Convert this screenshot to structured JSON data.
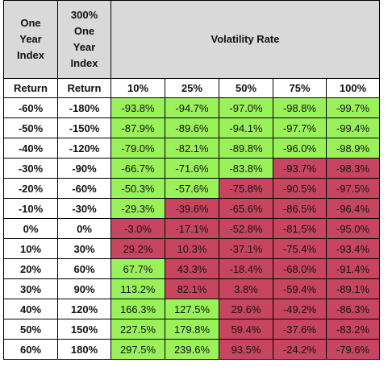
{
  "header": {
    "col1_lines": [
      "One",
      "Year",
      "Index"
    ],
    "col2_lines": [
      "300%",
      "One",
      "Year",
      "Index"
    ],
    "volatility_title": "Volatility Rate",
    "col1_sub": "Return",
    "col2_sub": "Return",
    "vol_levels": [
      "10%",
      "25%",
      "50%",
      "75%",
      "100%"
    ]
  },
  "colors": {
    "positive": "#9af25a",
    "negative": "#c8455f",
    "header_bg": "#d9d9d9"
  },
  "rows": [
    {
      "index_return": "-60%",
      "levered_return": "-180%",
      "cells": [
        {
          "v": "-93.8%",
          "s": "pos"
        },
        {
          "v": "-94.7%",
          "s": "pos"
        },
        {
          "v": "-97.0%",
          "s": "pos"
        },
        {
          "v": "-98.8%",
          "s": "pos"
        },
        {
          "v": "-99.7%",
          "s": "pos"
        }
      ]
    },
    {
      "index_return": "-50%",
      "levered_return": "-150%",
      "cells": [
        {
          "v": "-87.9%",
          "s": "pos"
        },
        {
          "v": "-89.6%",
          "s": "pos"
        },
        {
          "v": "-94.1%",
          "s": "pos"
        },
        {
          "v": "-97.7%",
          "s": "pos"
        },
        {
          "v": "-99.4%",
          "s": "pos"
        }
      ]
    },
    {
      "index_return": "-40%",
      "levered_return": "-120%",
      "cells": [
        {
          "v": "-79.0%",
          "s": "pos"
        },
        {
          "v": "-82.1%",
          "s": "pos"
        },
        {
          "v": "-89.8%",
          "s": "pos"
        },
        {
          "v": "-96.0%",
          "s": "pos"
        },
        {
          "v": "-98.9%",
          "s": "pos"
        }
      ]
    },
    {
      "index_return": "-30%",
      "levered_return": "-90%",
      "cells": [
        {
          "v": "-66.7%",
          "s": "pos"
        },
        {
          "v": "-71.6%",
          "s": "pos"
        },
        {
          "v": "-83.8%",
          "s": "pos"
        },
        {
          "v": "-93.7%",
          "s": "neg"
        },
        {
          "v": "-98.3%",
          "s": "neg"
        }
      ]
    },
    {
      "index_return": "-20%",
      "levered_return": "-60%",
      "cells": [
        {
          "v": "-50.3%",
          "s": "pos"
        },
        {
          "v": "-57.6%",
          "s": "pos"
        },
        {
          "v": "-75.8%",
          "s": "neg"
        },
        {
          "v": "-90.5%",
          "s": "neg"
        },
        {
          "v": "-97.5%",
          "s": "neg"
        }
      ]
    },
    {
      "index_return": "-10%",
      "levered_return": "-30%",
      "cells": [
        {
          "v": "-29.3%",
          "s": "pos"
        },
        {
          "v": "-39.6%",
          "s": "neg"
        },
        {
          "v": "-65.6%",
          "s": "neg"
        },
        {
          "v": "-86.5%",
          "s": "neg"
        },
        {
          "v": "-96.4%",
          "s": "neg"
        }
      ]
    },
    {
      "index_return": "0%",
      "levered_return": "0%",
      "cells": [
        {
          "v": "-3.0%",
          "s": "neg"
        },
        {
          "v": "-17.1%",
          "s": "neg"
        },
        {
          "v": "-52.8%",
          "s": "neg"
        },
        {
          "v": "-81.5%",
          "s": "neg"
        },
        {
          "v": "-95.0%",
          "s": "neg"
        }
      ]
    },
    {
      "index_return": "10%",
      "levered_return": "30%",
      "cells": [
        {
          "v": "29.2%",
          "s": "neg"
        },
        {
          "v": "10.3%",
          "s": "neg"
        },
        {
          "v": "-37.1%",
          "s": "neg"
        },
        {
          "v": "-75.4%",
          "s": "neg"
        },
        {
          "v": "-93.4%",
          "s": "neg"
        }
      ]
    },
    {
      "index_return": "20%",
      "levered_return": "60%",
      "cells": [
        {
          "v": "67.7%",
          "s": "pos"
        },
        {
          "v": "43.3%",
          "s": "neg"
        },
        {
          "v": "-18.4%",
          "s": "neg"
        },
        {
          "v": "-68.0%",
          "s": "neg"
        },
        {
          "v": "-91.4%",
          "s": "neg"
        }
      ]
    },
    {
      "index_return": "30%",
      "levered_return": "90%",
      "cells": [
        {
          "v": "113.2%",
          "s": "pos"
        },
        {
          "v": "82.1%",
          "s": "neg"
        },
        {
          "v": "3.8%",
          "s": "neg"
        },
        {
          "v": "-59.4%",
          "s": "neg"
        },
        {
          "v": "-89.1%",
          "s": "neg"
        }
      ]
    },
    {
      "index_return": "40%",
      "levered_return": "120%",
      "cells": [
        {
          "v": "166.3%",
          "s": "pos"
        },
        {
          "v": "127.5%",
          "s": "pos"
        },
        {
          "v": "29.6%",
          "s": "neg"
        },
        {
          "v": "-49.2%",
          "s": "neg"
        },
        {
          "v": "-86.3%",
          "s": "neg"
        }
      ]
    },
    {
      "index_return": "50%",
      "levered_return": "150%",
      "cells": [
        {
          "v": "227.5%",
          "s": "pos"
        },
        {
          "v": "179.8%",
          "s": "pos"
        },
        {
          "v": "59.4%",
          "s": "neg"
        },
        {
          "v": "-37.6%",
          "s": "neg"
        },
        {
          "v": "-83.2%",
          "s": "neg"
        }
      ]
    },
    {
      "index_return": "60%",
      "levered_return": "180%",
      "cells": [
        {
          "v": "297.5%",
          "s": "pos"
        },
        {
          "v": "239.6%",
          "s": "pos"
        },
        {
          "v": "93.5%",
          "s": "neg"
        },
        {
          "v": "-24.2%",
          "s": "neg"
        },
        {
          "v": "-79.6%",
          "s": "neg"
        }
      ]
    }
  ]
}
